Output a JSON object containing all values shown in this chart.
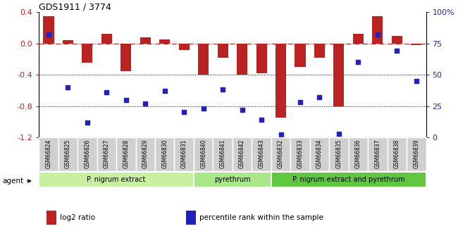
{
  "title": "GDS1911 / 3774",
  "samples": [
    "GSM66824",
    "GSM66825",
    "GSM66826",
    "GSM66827",
    "GSM66828",
    "GSM66829",
    "GSM66830",
    "GSM66831",
    "GSM66840",
    "GSM66841",
    "GSM66842",
    "GSM66843",
    "GSM66832",
    "GSM66833",
    "GSM66834",
    "GSM66835",
    "GSM66836",
    "GSM66837",
    "GSM66838",
    "GSM66839"
  ],
  "log2_ratio": [
    0.35,
    0.04,
    -0.25,
    0.12,
    -0.35,
    0.08,
    0.05,
    -0.08,
    -0.4,
    -0.18,
    -0.4,
    -0.38,
    -0.95,
    -0.3,
    -0.18,
    -0.8,
    0.12,
    0.35,
    0.1,
    -0.02
  ],
  "percentile": [
    82,
    40,
    12,
    36,
    30,
    27,
    37,
    20,
    23,
    38,
    22,
    14,
    2,
    28,
    32,
    3,
    60,
    82,
    69,
    45
  ],
  "groups": [
    {
      "label": "P. nigrum extract",
      "start": 0,
      "end": 7,
      "color": "#c8f0a0"
    },
    {
      "label": "pyrethrum",
      "start": 8,
      "end": 11,
      "color": "#a8e888"
    },
    {
      "label": "P. nigrum extract and pyrethrum",
      "start": 12,
      "end": 19,
      "color": "#60c840"
    }
  ],
  "bar_color": "#bb2222",
  "dot_color": "#2222bb",
  "ylim_left": [
    -1.2,
    0.4
  ],
  "ylim_right": [
    0,
    100
  ],
  "yticks_left": [
    0.4,
    0.0,
    -0.4,
    -0.8,
    -1.2
  ],
  "yticks_right": [
    100,
    75,
    50,
    25,
    0
  ],
  "dotted_lines": [
    -0.4,
    -0.8
  ],
  "agent_label": "agent",
  "legend": [
    {
      "color": "#bb2222",
      "label": "log2 ratio"
    },
    {
      "color": "#2222bb",
      "label": "percentile rank within the sample"
    }
  ],
  "bar_width": 0.55,
  "bg_color": "#f0f0f0",
  "plot_bg": "#ffffff"
}
